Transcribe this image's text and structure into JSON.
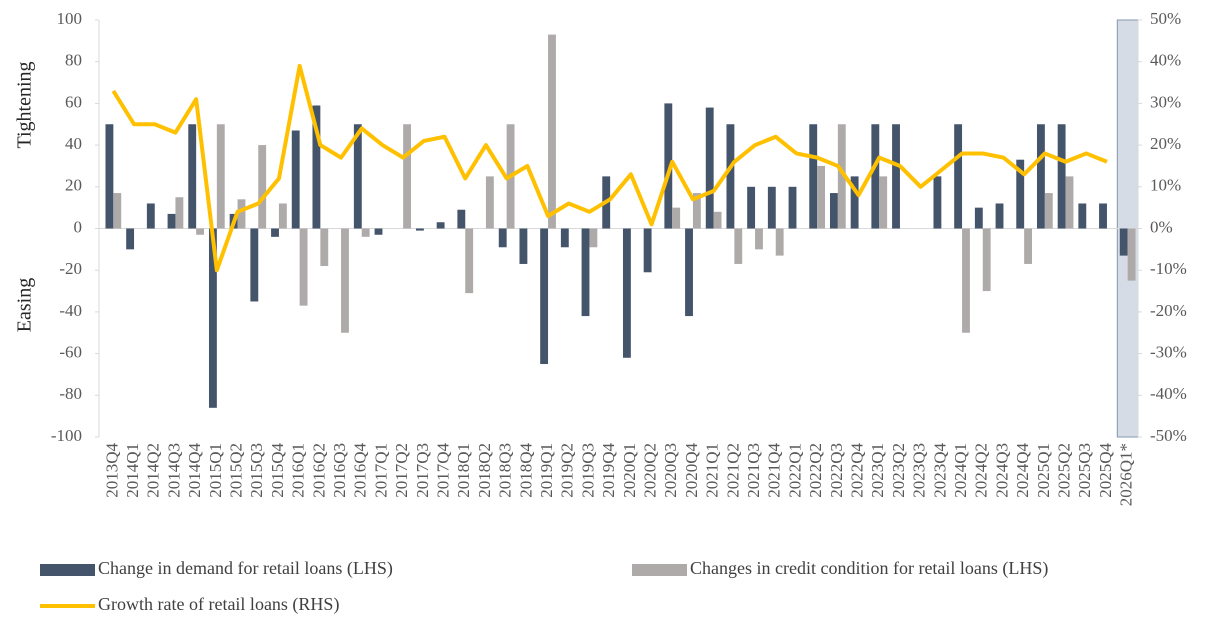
{
  "chart_data": {
    "type": "bar_line",
    "y_label_top": "Tightening",
    "y_label_bottom": "Easing",
    "highlight": "2026Q1*",
    "categories": [
      "2013Q4",
      "2014Q1",
      "2014Q2",
      "2014Q3",
      "2014Q4",
      "2015Q1",
      "2015Q2",
      "2015Q3",
      "2015Q4",
      "2016Q1",
      "2016Q2",
      "2016Q3",
      "2016Q4",
      "2017Q1",
      "2017Q2",
      "2017Q3",
      "2017Q4",
      "2018Q1",
      "2018Q2",
      "2018Q3",
      "2018Q4",
      "2019Q1",
      "2019Q2",
      "2019Q3",
      "2019Q4",
      "2020Q1",
      "2020Q2",
      "2020Q3",
      "2020Q4",
      "2021Q1",
      "2021Q2",
      "2021Q3",
      "2021Q4",
      "2022Q1",
      "2022Q2",
      "2022Q3",
      "2022Q4",
      "2023Q1",
      "2023Q2",
      "2023Q3",
      "2023Q4",
      "2024Q1",
      "2024Q2",
      "2024Q3",
      "2024Q4",
      "2025Q1",
      "2025Q2",
      "2025Q3",
      "2025Q4",
      "2026Q1*"
    ],
    "series": [
      {
        "name": "Change in demand for retail loans (LHS)",
        "type": "bar",
        "color": "#44546a",
        "values": [
          50,
          -10,
          12,
          7,
          50,
          -86,
          7,
          -35,
          -4,
          47,
          59,
          0,
          50,
          -3,
          0,
          -1,
          3,
          9,
          0,
          -9,
          -17,
          -65,
          -9,
          -42,
          25,
          -62,
          -21,
          60,
          -42,
          58,
          50,
          20,
          20,
          20,
          50,
          17,
          25,
          50,
          50,
          0,
          25,
          50,
          10,
          12,
          33,
          50,
          50,
          12,
          12,
          -13
        ]
      },
      {
        "name": "Changes in credit condition for retail loans (LHS)",
        "type": "bar",
        "color": "#aeaaaa",
        "values": [
          17,
          0,
          0,
          15,
          -3,
          50,
          14,
          40,
          12,
          -37,
          -18,
          -50,
          -4,
          0,
          50,
          0,
          0,
          -31,
          25,
          50,
          0,
          93,
          0,
          -9,
          0,
          0,
          0,
          10,
          17,
          8,
          -17,
          -10,
          -13,
          0,
          30,
          50,
          0,
          25,
          0,
          0,
          0,
          -50,
          -30,
          0,
          -17,
          17,
          25,
          0,
          0,
          -25
        ]
      },
      {
        "name": "Growth rate of retail loans (RHS)",
        "type": "line",
        "axis": "y2",
        "color": "#ffc000",
        "values": [
          33,
          25,
          25,
          23,
          31,
          -10,
          4,
          6,
          12,
          39,
          20,
          17,
          24,
          20,
          17,
          21,
          22,
          12,
          20,
          12,
          15,
          3,
          6,
          4,
          7,
          13,
          1,
          16,
          7,
          9,
          16,
          20,
          22,
          18,
          17,
          15,
          8,
          17,
          15,
          10,
          14,
          18,
          18,
          17,
          13,
          18,
          16,
          18,
          16,
          null
        ]
      }
    ],
    "ylim": [
      -100,
      100
    ],
    "yticks": [
      -100,
      -80,
      -60,
      -40,
      -20,
      0,
      20,
      40,
      60,
      80,
      100
    ],
    "y2lim": [
      -50,
      50
    ],
    "y2ticks": [
      {
        "value": -50,
        "label": "-50%"
      },
      {
        "value": -40,
        "label": "-40%"
      },
      {
        "value": -30,
        "label": "-30%"
      },
      {
        "value": -20,
        "label": "-20%"
      },
      {
        "value": -10,
        "label": "-10%"
      },
      {
        "value": 0,
        "label": "0%"
      },
      {
        "value": 10,
        "label": "10%"
      },
      {
        "value": 20,
        "label": "20%"
      },
      {
        "value": 30,
        "label": "30%"
      },
      {
        "value": 40,
        "label": "40%"
      },
      {
        "value": 50,
        "label": "50%"
      }
    ]
  }
}
